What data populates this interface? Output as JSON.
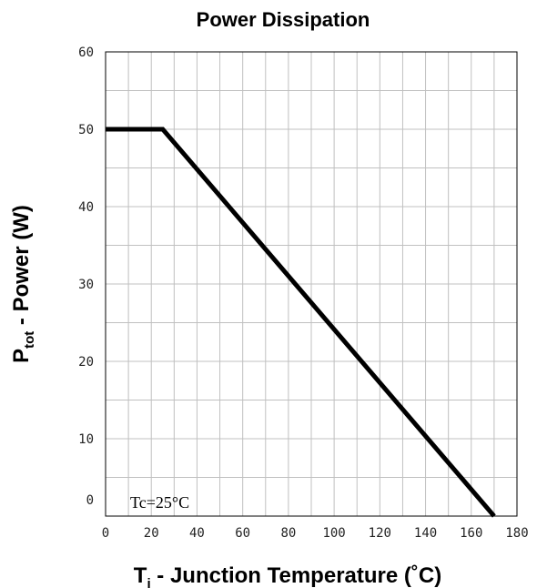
{
  "chart_data": {
    "type": "line",
    "title": "Power Dissipation",
    "xlabel": {
      "main": "T",
      "sub": "j",
      "rest": " - Junction Temperature (˚C)"
    },
    "ylabel": {
      "main": "P",
      "sub": "tot",
      "rest": " - Power (W)"
    },
    "xlim": [
      0,
      180
    ],
    "ylim": [
      0,
      60
    ],
    "x_ticks": [
      0,
      20,
      40,
      60,
      80,
      100,
      120,
      140,
      160,
      180
    ],
    "y_ticks": [
      0,
      10,
      20,
      30,
      40,
      50,
      60
    ],
    "x_minor_step": 10,
    "y_minor_step": 5,
    "grid": true,
    "annotation": "Tc=25°C",
    "series": [
      {
        "x": [
          0,
          25,
          170
        ],
        "y": [
          50,
          50,
          0
        ]
      }
    ],
    "colors": {
      "line": "#000000",
      "grid": "#c0c0c0",
      "frame": "#000000"
    }
  }
}
